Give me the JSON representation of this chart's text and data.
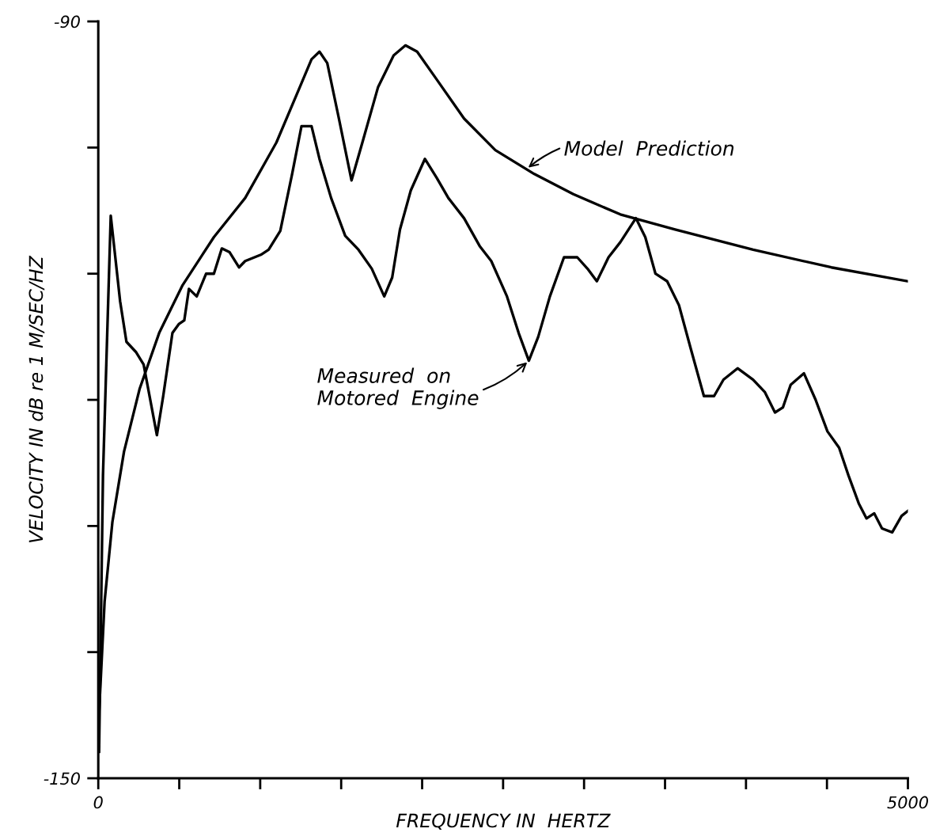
{
  "chart_data": {
    "type": "line",
    "xlabel": "FREQUENCY IN  HERTZ",
    "ylabel": "VELOCITY IN dB re 1 M/SEC/HZ",
    "xlim": [
      0,
      5000
    ],
    "ylim": [
      -150,
      -90
    ],
    "xticks": [
      0,
      {
        "value": 500,
        "label": null
      },
      {
        "value": 1000,
        "label": null
      },
      {
        "value": 1500,
        "label": null
      },
      {
        "value": 2000,
        "label": null
      },
      {
        "value": 2500,
        "label": null
      },
      {
        "value": 3000,
        "label": null
      },
      {
        "value": 3500,
        "label": null
      },
      {
        "value": 4000,
        "label": null
      },
      {
        "value": 4500,
        "label": null
      },
      5000
    ],
    "yticks": [
      -150,
      {
        "value": -140,
        "label": null
      },
      {
        "value": -130,
        "label": null
      },
      {
        "value": -120,
        "label": null
      },
      {
        "value": -110,
        "label": null
      },
      {
        "value": -100,
        "label": null
      },
      -90
    ],
    "grid": false,
    "legend": false,
    "marker": "none",
    "line_style": "solid",
    "series": [
      {
        "color": "#000000",
        "x": [
          5,
          39,
          87,
          159,
          256,
          376,
          521,
          714,
          907,
          1100,
          1245,
          1317,
          1366,
          1414,
          1486,
          1564,
          1631,
          1728,
          1824,
          1897,
          1969,
          2090,
          2259,
          2452,
          2693,
          2934,
          3224,
          3562,
          4044,
          4527,
          5000
        ],
        "values": [
          -144.8,
          -136.0,
          -129.7,
          -124.1,
          -119.1,
          -114.7,
          -110.9,
          -107.1,
          -104.0,
          -99.6,
          -95.2,
          -93.0,
          -92.4,
          -93.3,
          -97.7,
          -102.6,
          -99.6,
          -95.2,
          -92.7,
          -91.9,
          -92.4,
          -94.6,
          -97.7,
          -100.2,
          -102.1,
          -103.7,
          -105.3,
          -106.5,
          -108.1,
          -109.5,
          -110.6
        ]
      },
      {
        "color": "#000000",
        "x": [
          5,
          29,
          77,
          135,
          174,
          232,
          280,
          362,
          401,
          458,
          497,
          531,
          560,
          608,
          666,
          714,
          763,
          811,
          869,
          907,
          1004,
          1052,
          1124,
          1197,
          1255,
          1317,
          1366,
          1438,
          1525,
          1607,
          1689,
          1766,
          1815,
          1863,
          1930,
          2017,
          2090,
          2162,
          2259,
          2355,
          2427,
          2524,
          2596,
          2659,
          2717,
          2789,
          2876,
          2958,
          3021,
          3079,
          3151,
          3224,
          3320,
          3378,
          3441,
          3513,
          3586,
          3658,
          3740,
          3803,
          3861,
          3948,
          4044,
          4117,
          4179,
          4228,
          4276,
          4358,
          4430,
          4503,
          4575,
          4633,
          4696,
          4744,
          4792,
          4840,
          4903,
          4961,
          5000
        ],
        "values": [
          -147.9,
          -126.0,
          -105.4,
          -112.2,
          -115.4,
          -116.2,
          -117.2,
          -122.8,
          -119.7,
          -114.7,
          -114.0,
          -113.7,
          -111.2,
          -111.8,
          -110.0,
          -110.0,
          -108.0,
          -108.3,
          -109.5,
          -109.0,
          -108.5,
          -108.1,
          -106.6,
          -102.1,
          -98.3,
          -98.3,
          -100.9,
          -104.0,
          -107.0,
          -108.1,
          -109.6,
          -111.8,
          -110.3,
          -106.5,
          -103.4,
          -100.9,
          -102.4,
          -104.0,
          -105.6,
          -107.8,
          -109.0,
          -111.8,
          -114.7,
          -116.9,
          -115.0,
          -111.8,
          -108.7,
          -108.7,
          -109.6,
          -110.6,
          -108.7,
          -107.5,
          -105.6,
          -107.1,
          -110.0,
          -110.6,
          -112.5,
          -115.9,
          -119.7,
          -119.7,
          -118.4,
          -117.5,
          -118.4,
          -119.4,
          -121.0,
          -120.6,
          -118.8,
          -117.9,
          -120.0,
          -122.5,
          -123.8,
          -126.0,
          -128.2,
          -129.4,
          -129.0,
          -130.2,
          -130.5,
          -129.2,
          -128.8
        ]
      }
    ],
    "annotations": [
      {
        "text": "Model  Prediction",
        "x": 2645,
        "y": -101.7
      },
      {
        "text": "Measured  on\nMotored  Engine",
        "x": 2659,
        "y": -116.9
      }
    ]
  }
}
